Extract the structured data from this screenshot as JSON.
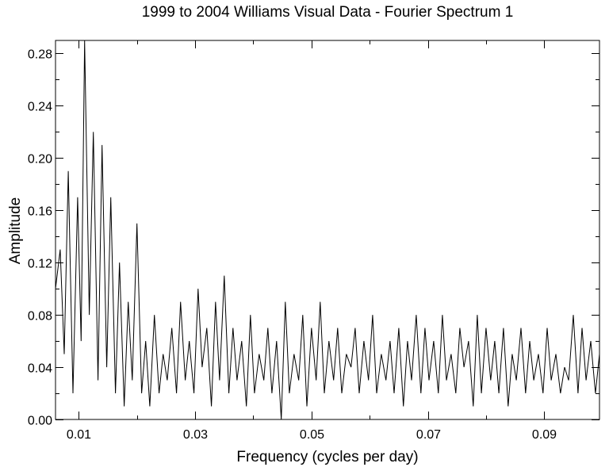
{
  "chart_data": {
    "type": "line",
    "title": "1999 to 2004 Williams Visual Data - Fourier Spectrum 1",
    "xlabel": "Frequency (cycles per day)",
    "ylabel": "Amplitude",
    "xlim": [
      0.006,
      0.0995
    ],
    "ylim": [
      0.0,
      0.29
    ],
    "x_ticks": [
      0.01,
      0.03,
      0.05,
      0.07,
      0.09
    ],
    "x_tick_labels": [
      "0.01",
      "0.03",
      "0.05",
      "0.07",
      "0.09"
    ],
    "y_ticks": [
      0.0,
      0.04,
      0.08,
      0.12,
      0.16,
      0.2,
      0.24,
      0.28
    ],
    "y_tick_labels": [
      "0.00",
      "0.04",
      "0.08",
      "0.12",
      "0.16",
      "0.20",
      "0.24",
      "0.28"
    ],
    "line_color": "#000000",
    "series": [
      {
        "x": [
          0.006,
          0.0068,
          0.0075,
          0.0082,
          0.009,
          0.0098,
          0.0104,
          0.011,
          0.0118,
          0.0125,
          0.0133,
          0.014,
          0.0148,
          0.0155,
          0.0163,
          0.017,
          0.0178,
          0.0185,
          0.0192,
          0.02,
          0.0208,
          0.0215,
          0.0222,
          0.023,
          0.0238,
          0.0245,
          0.0252,
          0.026,
          0.0268,
          0.0275,
          0.0283,
          0.029,
          0.0298,
          0.0305,
          0.0312,
          0.032,
          0.0328,
          0.0335,
          0.0342,
          0.035,
          0.0358,
          0.0365,
          0.0372,
          0.038,
          0.0388,
          0.0395,
          0.0402,
          0.041,
          0.0418,
          0.0425,
          0.0432,
          0.044,
          0.0448,
          0.0455,
          0.0462,
          0.047,
          0.0478,
          0.0485,
          0.0492,
          0.05,
          0.0508,
          0.0515,
          0.0522,
          0.053,
          0.0538,
          0.0545,
          0.0552,
          0.056,
          0.0568,
          0.0575,
          0.0582,
          0.059,
          0.0598,
          0.0605,
          0.0612,
          0.062,
          0.0628,
          0.0635,
          0.0642,
          0.065,
          0.0658,
          0.0665,
          0.0672,
          0.068,
          0.0688,
          0.0695,
          0.0702,
          0.071,
          0.0718,
          0.0725,
          0.0732,
          0.074,
          0.0748,
          0.0755,
          0.0762,
          0.077,
          0.0778,
          0.0785,
          0.0792,
          0.08,
          0.0808,
          0.0815,
          0.0822,
          0.083,
          0.0838,
          0.0845,
          0.0852,
          0.086,
          0.0868,
          0.0875,
          0.0882,
          0.089,
          0.0898,
          0.0905,
          0.0912,
          0.092,
          0.0928,
          0.0935,
          0.0942,
          0.095,
          0.0958,
          0.0965,
          0.0972,
          0.098,
          0.0988,
          0.0995
        ],
        "y": [
          0.1,
          0.13,
          0.05,
          0.19,
          0.02,
          0.17,
          0.06,
          0.29,
          0.08,
          0.22,
          0.03,
          0.21,
          0.04,
          0.17,
          0.02,
          0.12,
          0.01,
          0.09,
          0.03,
          0.15,
          0.02,
          0.06,
          0.01,
          0.08,
          0.02,
          0.05,
          0.03,
          0.07,
          0.02,
          0.09,
          0.03,
          0.06,
          0.02,
          0.1,
          0.04,
          0.07,
          0.01,
          0.09,
          0.03,
          0.11,
          0.02,
          0.07,
          0.03,
          0.06,
          0.01,
          0.08,
          0.02,
          0.05,
          0.03,
          0.07,
          0.02,
          0.06,
          0.0,
          0.09,
          0.02,
          0.05,
          0.03,
          0.08,
          0.01,
          0.07,
          0.03,
          0.09,
          0.02,
          0.06,
          0.03,
          0.07,
          0.02,
          0.05,
          0.04,
          0.07,
          0.02,
          0.06,
          0.03,
          0.08,
          0.02,
          0.05,
          0.03,
          0.06,
          0.02,
          0.07,
          0.01,
          0.06,
          0.03,
          0.08,
          0.02,
          0.07,
          0.03,
          0.06,
          0.02,
          0.08,
          0.03,
          0.05,
          0.02,
          0.07,
          0.04,
          0.06,
          0.01,
          0.08,
          0.02,
          0.07,
          0.03,
          0.06,
          0.02,
          0.07,
          0.01,
          0.05,
          0.03,
          0.07,
          0.02,
          0.06,
          0.03,
          0.05,
          0.02,
          0.07,
          0.03,
          0.05,
          0.02,
          0.04,
          0.03,
          0.08,
          0.02,
          0.07,
          0.03,
          0.06,
          0.02,
          0.05
        ]
      }
    ]
  }
}
